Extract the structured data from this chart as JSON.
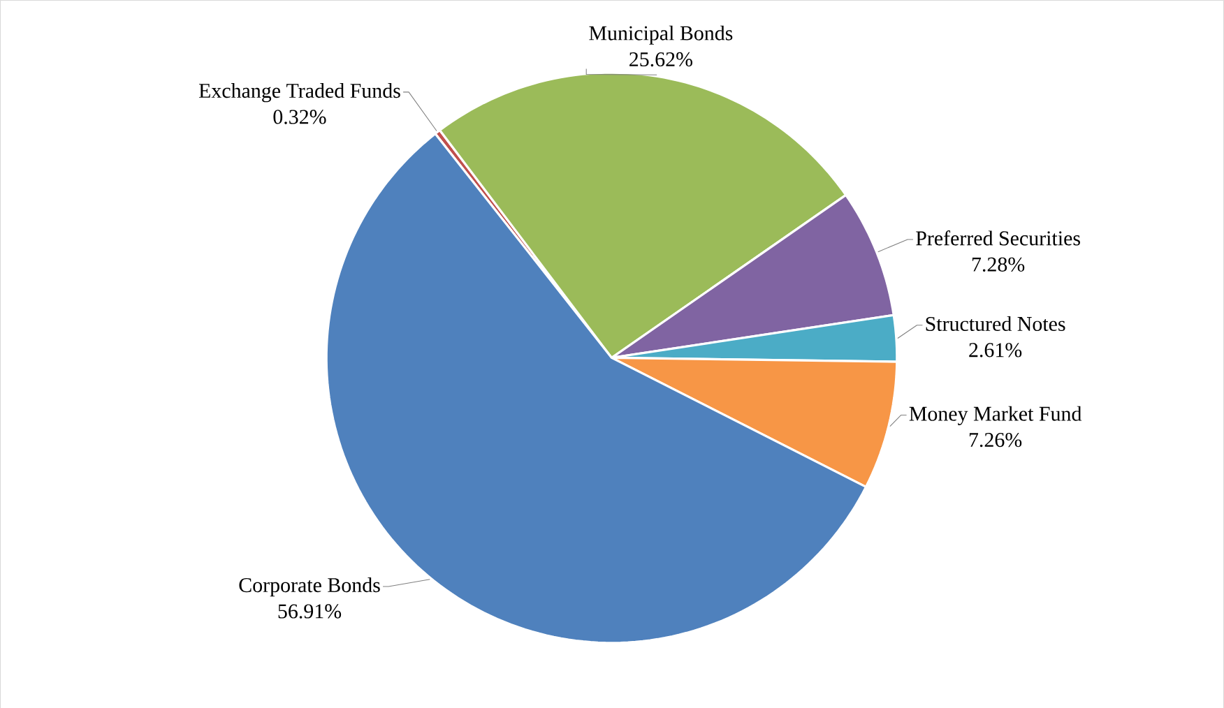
{
  "chart_data": {
    "type": "pie",
    "categories": [
      "Exchange  Traded Funds",
      "Municipal Bonds",
      "Preferred Securities",
      "Structured Notes",
      "Money Market Fund",
      "Corporate Bonds"
    ],
    "values": [
      0.32,
      25.62,
      7.28,
      2.61,
      7.26,
      56.91
    ],
    "value_labels": [
      "0.32%",
      "25.62%",
      "7.28%",
      "2.61%",
      "7.26%",
      "56.91%"
    ],
    "colors": [
      "#c0504d",
      "#9bbb59",
      "#8064a2",
      "#4bacc6",
      "#f79646",
      "#4f81bd"
    ]
  }
}
